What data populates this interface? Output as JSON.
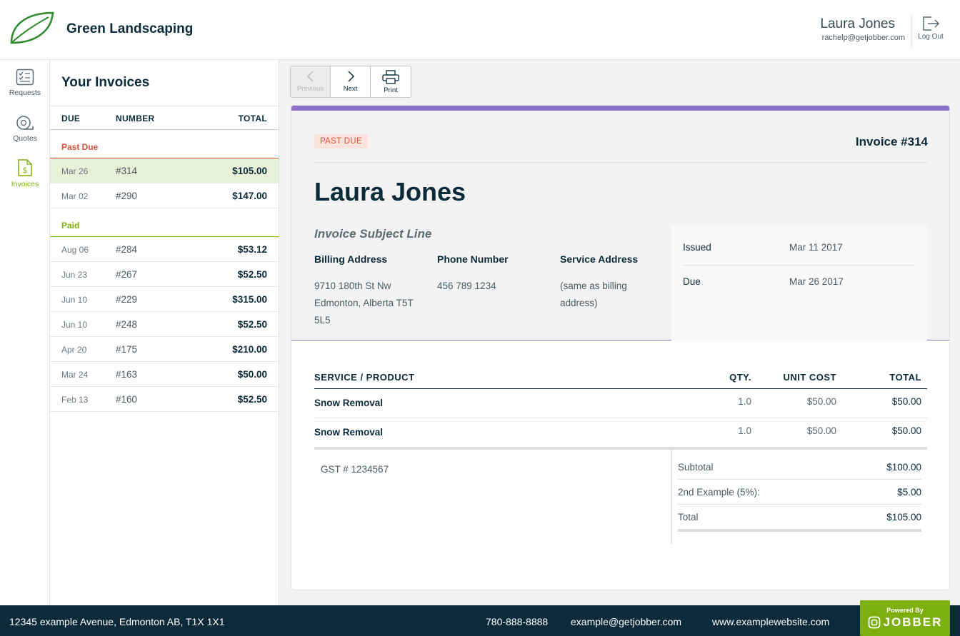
{
  "header": {
    "brand": "Green Landscaping",
    "user_name": "Laura Jones",
    "user_email": "rachelp@getjobber.com",
    "logout_label": "Log Out"
  },
  "sidenav": {
    "items": [
      {
        "label": "Requests",
        "icon": "checklist-icon"
      },
      {
        "label": "Quotes",
        "icon": "measuring-tape-icon"
      },
      {
        "label": "Invoices",
        "icon": "invoice-dollar-icon",
        "active": true
      }
    ]
  },
  "invoice_list": {
    "title": "Your Invoices",
    "columns": {
      "due": "DUE",
      "number": "NUMBER",
      "total": "TOTAL"
    },
    "groups": [
      {
        "label": "Past Due",
        "color": "#d8533b",
        "rows": [
          {
            "due": "Mar 26",
            "number": "#314",
            "total": "$105.00",
            "selected": true
          },
          {
            "due": "Mar 02",
            "number": "#290",
            "total": "$147.00"
          }
        ]
      },
      {
        "label": "Paid",
        "color": "#7db00e",
        "rows": [
          {
            "due": "Aug 06",
            "number": "#284",
            "total": "$53.12"
          },
          {
            "due": "Jun 23",
            "number": "#267",
            "total": "$52.50"
          },
          {
            "due": "Jun 10",
            "number": "#229",
            "total": "$315.00"
          },
          {
            "due": "Jun 10",
            "number": "#248",
            "total": "$52.50"
          },
          {
            "due": "Apr 20",
            "number": "#175",
            "total": "$210.00"
          },
          {
            "due": "Mar 24",
            "number": "#163",
            "total": "$50.00"
          },
          {
            "due": "Feb 13",
            "number": "#160",
            "total": "$52.50"
          }
        ]
      }
    ]
  },
  "toolbar": {
    "previous_label": "Previous",
    "next_label": "Next",
    "print_label": "Print"
  },
  "invoice": {
    "status": "PAST DUE",
    "number": "Invoice #314",
    "client_name": "Laura Jones",
    "subject": "Invoice Subject Line",
    "billing_address_label": "Billing Address",
    "billing_address": [
      "9710 180th St Nw",
      "Edmonton, Alberta T5T",
      "5L5"
    ],
    "phone_label": "Phone Number",
    "phone": "456 789 1234",
    "service_address_label": "Service Address",
    "service_address": [
      "(same as billing",
      "address)"
    ],
    "issued_label": "Issued",
    "issued": "Mar 11 2017",
    "due_label": "Due",
    "due": "Mar 26 2017",
    "line_item_headers": {
      "product": "SERVICE / PRODUCT",
      "qty": "QTY.",
      "unit_cost": "UNIT COST",
      "total": "TOTAL"
    },
    "line_items": [
      {
        "name": "Snow Removal",
        "qty": "1.0",
        "unit_cost": "$50.00",
        "total": "$50.00"
      },
      {
        "name": "Snow Removal",
        "qty": "1.0",
        "unit_cost": "$50.00",
        "total": "$50.00"
      }
    ],
    "gst": "GST # 1234567",
    "totals": [
      {
        "label": "Subtotal",
        "value": "$100.00"
      },
      {
        "label": "2nd Example (5%):",
        "value": "$5.00"
      },
      {
        "label": "Total",
        "value": "$105.00"
      }
    ]
  },
  "footer": {
    "address": "12345 example Avenue, Edmonton AB, T1X 1X1",
    "phone": "780-888-8888",
    "email": "example@getjobber.com",
    "website": "www.examplewebsite.com",
    "powered_by": "Powered By",
    "powered_brand": "JOBBER"
  },
  "colors": {
    "accent_purple": "#8a72c9",
    "brand_green": "#7db00e",
    "past_due_red": "#d8533b",
    "navy": "#0b2a3a"
  }
}
